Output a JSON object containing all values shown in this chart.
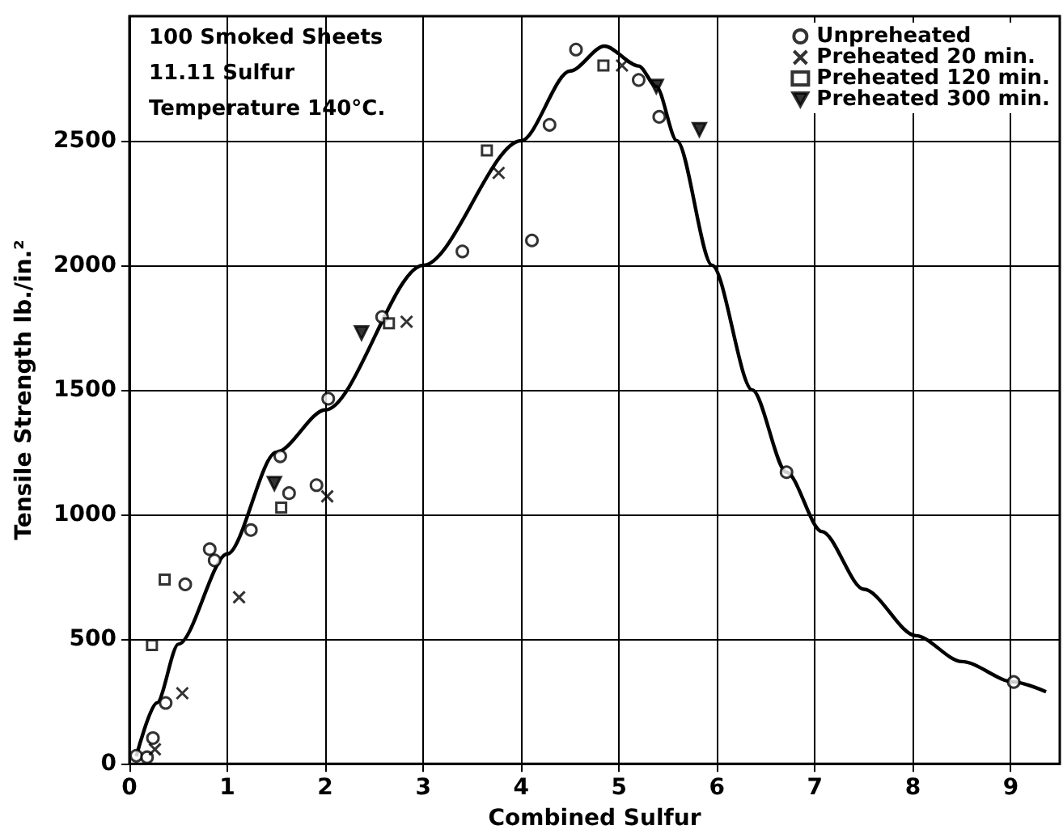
{
  "chart_data": {
    "type": "scatter",
    "xlabel": "Combined Sulfur",
    "ylabel": "Tensile Strength lb./in.²",
    "annotations": [
      "100 Smoked Sheets",
      "11.11 Sulfur",
      "Temperature 140°C."
    ],
    "xlim": [
      0,
      9.5
    ],
    "xticks": [
      0,
      1,
      2,
      3,
      4,
      5,
      6,
      7,
      8,
      9
    ],
    "ylim": [
      0,
      3000
    ],
    "yticks": [
      0,
      500,
      1000,
      1500,
      2000,
      2500
    ],
    "grid": true,
    "legend": "top right",
    "series": [
      {
        "name": "Unpreheated",
        "color": "#000000",
        "marker": "circle",
        "x": [
          0.07,
          0.18,
          0.24,
          0.37,
          0.57,
          0.82,
          0.87,
          1.24,
          1.54,
          1.63,
          1.91,
          2.03,
          2.58,
          3.4,
          4.11,
          4.29,
          4.56,
          5.2,
          5.41,
          6.71,
          9.03
        ],
        "values": [
          32,
          26,
          103,
          244,
          720,
          861,
          816,
          938,
          1234,
          1086,
          1118,
          1465,
          1793,
          2056,
          2100,
          2564,
          2866,
          2744,
          2596,
          1170,
          328
        ]
      },
      {
        "name": "Preheated 20 min.",
        "color": "#000000",
        "marker": "cross",
        "x": [
          0.26,
          0.54,
          1.12,
          2.02,
          2.83,
          3.77,
          5.03
        ],
        "values": [
          58,
          283,
          668,
          1073,
          1774,
          2371,
          2802
        ]
      },
      {
        "name": "Preheated 120 min.",
        "color": "#000000",
        "marker": "square",
        "x": [
          0.23,
          0.36,
          1.55,
          2.65,
          3.65,
          4.84
        ],
        "values": [
          476,
          739,
          1028,
          1767,
          2461,
          2802
        ]
      },
      {
        "name": "Preheated 300 min.",
        "color": "#000000",
        "marker": "triangle",
        "x": [
          1.48,
          2.37,
          5.38,
          5.82
        ],
        "values": [
          1125,
          1729,
          2718,
          2545
        ]
      },
      {
        "type": "line",
        "color": "#000000",
        "marker": "none",
        "line_style": "solid",
        "x": [
          0.07,
          0.28,
          0.5,
          1,
          1.5,
          2,
          3,
          4,
          4.5,
          4.85,
          5.2,
          5.38,
          5.59,
          5.95,
          6.36,
          6.71,
          7.07,
          7.5,
          8.03,
          8.5,
          9.03,
          9.36
        ],
        "values": [
          30,
          244,
          480,
          842,
          1250,
          1420,
          2000,
          2500,
          2780,
          2880,
          2800,
          2718,
          2500,
          2000,
          1500,
          1170,
          932,
          700,
          514,
          410,
          328,
          289
        ]
      }
    ]
  }
}
